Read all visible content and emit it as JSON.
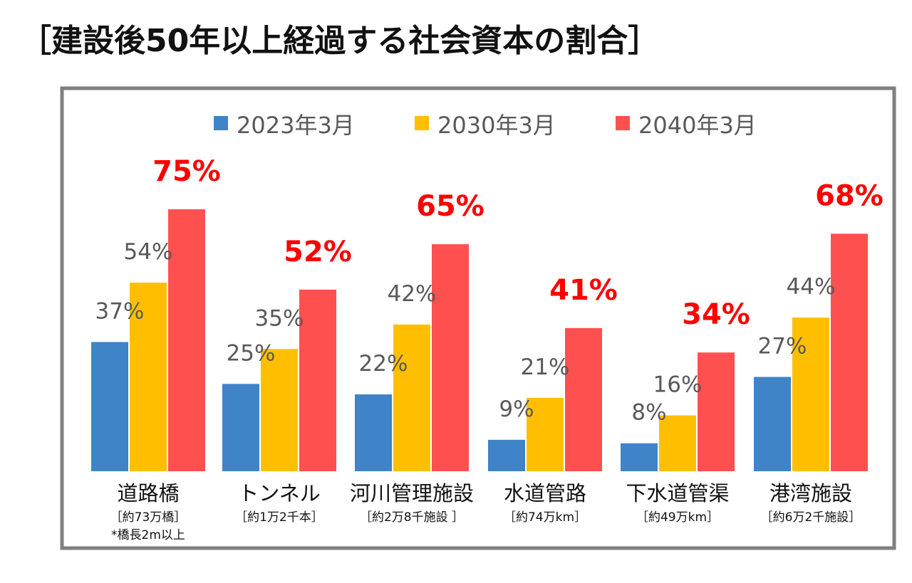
{
  "chart_data": {
    "type": "bar",
    "title": "［建設後50年以上経過する社会資本の割合］",
    "categories": [
      "道路橋",
      "トンネル",
      "河川管理施設",
      "水道管路",
      "下水道管渠",
      "港湾施設"
    ],
    "category_notes": [
      [
        "［約73万橋］",
        "*橋長2m以上"
      ],
      [
        "［約1万2千本］"
      ],
      [
        "［約2万8千施設 ］"
      ],
      [
        "［約74万km］"
      ],
      [
        "［約49万km］"
      ],
      [
        "［約6万2千施設］"
      ]
    ],
    "series": [
      {
        "name": "2023年3月",
        "color": "#3f83c8",
        "values": [
          37,
          25,
          22,
          9,
          8,
          27
        ],
        "labels": [
          "37%",
          "25%",
          "22%",
          "9%",
          "8%",
          "27%"
        ]
      },
      {
        "name": "2030年3月",
        "color": "#ffbf00",
        "values": [
          54,
          35,
          42,
          21,
          16,
          44
        ],
        "labels": [
          "54%",
          "35%",
          "42%",
          "21%",
          "16%",
          "44%"
        ]
      },
      {
        "name": "2040年3月",
        "color": "#ff5050",
        "values": [
          75,
          52,
          65,
          41,
          34,
          68
        ],
        "labels": [
          "75%",
          "52%",
          "65%",
          "41%",
          "34%",
          "68%"
        ]
      }
    ],
    "highlight_label_color": "#ff0000",
    "ylim": [
      0,
      75
    ],
    "grid": false,
    "legend": "top"
  }
}
